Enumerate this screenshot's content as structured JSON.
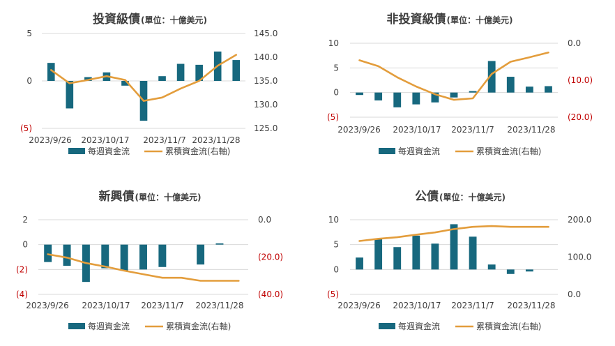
{
  "chart_data": [
    {
      "type": "bar+line",
      "title": "投資級債",
      "unit": "(單位：十億美元)",
      "x_tick_labels": [
        "2023/9/26",
        "2023/10/17",
        "2023/11/7",
        "2023/11/28"
      ],
      "y_left": {
        "ticks": [
          5,
          0,
          -5
        ],
        "labels": [
          "5",
          "0",
          "(5)"
        ],
        "range": [
          -5,
          5
        ]
      },
      "y_right": {
        "ticks": [
          145,
          140,
          135,
          130,
          125
        ],
        "labels": [
          "145.0",
          "140.0",
          "135.0",
          "130.0",
          "125.0"
        ],
        "range": [
          125,
          145
        ]
      },
      "series": [
        {
          "name": "每週資金流",
          "kind": "bar",
          "color": "#17687e",
          "values": [
            1.9,
            -2.9,
            0.4,
            0.9,
            -0.5,
            -4.2,
            0.5,
            1.8,
            1.7,
            3.1,
            2.2
          ]
        },
        {
          "name": "累積資金流(右軸)",
          "kind": "line",
          "color": "#e39d3c",
          "axis": "right",
          "values": [
            137.3,
            134.5,
            135.2,
            136.0,
            135.2,
            130.8,
            131.5,
            133.4,
            135.0,
            138.2,
            140.5
          ]
        }
      ]
    },
    {
      "type": "bar+line",
      "title": "非投資級債",
      "unit": "(單位：十億美元)",
      "x_tick_labels": [
        "2023/9/26",
        "2023/10/17",
        "2023/11/7",
        "2023/11/28"
      ],
      "y_left": {
        "ticks": [
          10,
          5,
          0,
          -5
        ],
        "labels": [
          "10",
          "5",
          "0",
          "(5)"
        ],
        "range": [
          -5,
          10
        ]
      },
      "y_right": {
        "ticks": [
          0,
          -10,
          -20
        ],
        "labels": [
          "0.0",
          "(10.0)",
          "(20.0)"
        ],
        "range": [
          -20,
          0
        ]
      },
      "series": [
        {
          "name": "每週資金流",
          "kind": "bar",
          "color": "#17687e",
          "values": [
            -0.5,
            -1.6,
            -3.0,
            -2.4,
            -2.0,
            -1.0,
            0.3,
            6.4,
            3.2,
            1.2,
            1.3
          ]
        },
        {
          "name": "累積資金流(右軸)",
          "kind": "line",
          "color": "#e39d3c",
          "axis": "right",
          "values": [
            -4.6,
            -6.2,
            -9.2,
            -11.7,
            -13.8,
            -15.3,
            -14.9,
            -8.3,
            -5.0,
            -3.8,
            -2.5
          ]
        }
      ]
    },
    {
      "type": "bar+line",
      "title": "新興債",
      "unit": "(單位：十億美元)",
      "x_tick_labels": [
        "2023/9/26",
        "2023/10/17",
        "2023/11/7",
        "2023/11/28"
      ],
      "y_left": {
        "ticks": [
          2,
          0,
          -2,
          -4
        ],
        "labels": [
          "2",
          "0",
          "(2)",
          "(4)"
        ],
        "range": [
          -4,
          2
        ]
      },
      "y_right": {
        "ticks": [
          0,
          -20,
          -40
        ],
        "labels": [
          "0.0",
          "(20.0)",
          "(40.0)"
        ],
        "range": [
          -40,
          0
        ]
      },
      "series": [
        {
          "name": "每週資金流",
          "kind": "bar",
          "color": "#17687e",
          "values": [
            -1.4,
            -1.7,
            -3.0,
            -1.9,
            -2.1,
            -2.0,
            -1.8,
            0,
            -1.6,
            0.1,
            0
          ]
        },
        {
          "name": "累積資金流(右軸)",
          "kind": "line",
          "color": "#e39d3c",
          "axis": "right",
          "values": [
            -18.5,
            -20.3,
            -23.2,
            -25.1,
            -27.3,
            -29.2,
            -31.1,
            -31.1,
            -32.7,
            -32.7,
            -32.7
          ]
        }
      ]
    },
    {
      "type": "bar+line",
      "title": "公債",
      "unit": "(單位：十億美元)",
      "x_tick_labels": [
        "2023/9/26",
        "2023/10/17",
        "2023/11/7",
        "2023/11/28"
      ],
      "y_left": {
        "ticks": [
          10,
          5,
          0,
          -5
        ],
        "labels": [
          "10",
          "5",
          "0",
          "(5)"
        ],
        "range": [
          -5,
          10
        ]
      },
      "y_right": {
        "ticks": [
          200,
          100,
          0
        ],
        "labels": [
          "200.0",
          "100.0",
          "0.0"
        ],
        "range": [
          0,
          200
        ]
      },
      "series": [
        {
          "name": "每週資金流",
          "kind": "bar",
          "color": "#17687e",
          "values": [
            2.4,
            6.1,
            4.5,
            6.8,
            5.2,
            9.1,
            6.6,
            1.0,
            -0.9,
            -0.4,
            0
          ]
        },
        {
          "name": "累積資金流(右軸)",
          "kind": "line",
          "color": "#e39d3c",
          "axis": "right",
          "values": [
            143,
            149,
            153,
            160,
            166,
            175,
            181,
            183,
            181,
            181,
            181
          ]
        }
      ]
    }
  ]
}
